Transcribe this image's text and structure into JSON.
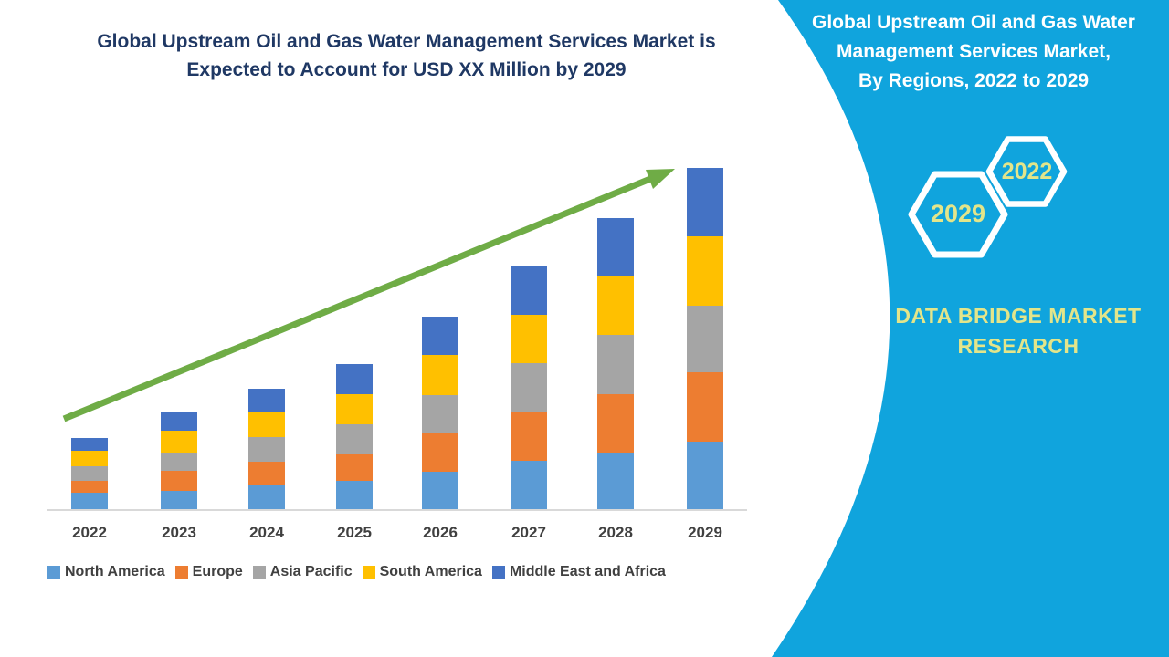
{
  "left_panel": {
    "title_line1": "Global Upstream Oil and Gas Water Management Services Market is",
    "title_line2": "Expected to Account for USD XX Million by 2029"
  },
  "right_panel": {
    "title_line1": "Global Upstream Oil and Gas Water",
    "title_line2": "Management Services Market,",
    "title_line3": "By Regions, 2022 to 2029",
    "hexagon_large_label": "2029",
    "hexagon_small_label": "2022",
    "brand_line1": "DATA BRIDGE MARKET",
    "brand_line2": "RESEARCH",
    "background_color": "#10A4DD",
    "hexagon_outline_color": "#FFFFFF",
    "accent_text_color": "#E3E58A"
  },
  "chart_data": {
    "type": "bar",
    "stacked": true,
    "title": "Global Upstream Oil and Gas Water Management Services Market is Expected to Account for USD XX Million by 2029",
    "xlabel": "",
    "ylabel": "",
    "units": "relative size (values shown as USD XX Million, axis unlabeled)",
    "grid": false,
    "legend_position": "bottom",
    "categories": [
      "2022",
      "2023",
      "2024",
      "2025",
      "2026",
      "2027",
      "2028",
      "2029"
    ],
    "series": [
      {
        "name": "North America",
        "color": "#5B9BD5",
        "values": [
          19,
          21,
          27,
          32,
          42,
          54,
          63,
          75
        ]
      },
      {
        "name": "Europe",
        "color": "#ED7D31",
        "values": [
          13,
          22,
          26,
          30,
          43,
          53,
          64,
          76
        ]
      },
      {
        "name": "Asia Pacific",
        "color": "#A5A5A5",
        "values": [
          16,
          20,
          27,
          32,
          41,
          54,
          65,
          73
        ]
      },
      {
        "name": "South America",
        "color": "#FFC000",
        "values": [
          17,
          24,
          27,
          33,
          44,
          53,
          64,
          76
        ]
      },
      {
        "name": "Middle East and Africa",
        "color": "#4472C4",
        "values": [
          14,
          20,
          26,
          33,
          42,
          53,
          64,
          75
        ]
      }
    ],
    "totals": [
      79,
      107,
      133,
      160,
      212,
      267,
      320,
      375
    ],
    "trend_arrow_color": "#6FAC46",
    "trend_direction": "up"
  }
}
